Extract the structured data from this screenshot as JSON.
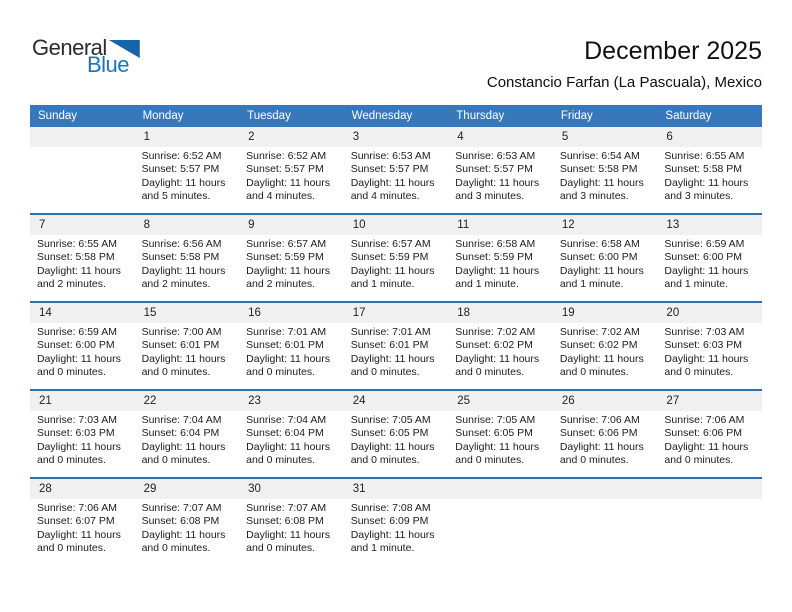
{
  "logo": {
    "text_top": "General",
    "text_bottom": "Blue"
  },
  "title": "December 2025",
  "subtitle": "Constancio Farfan (La Pascuala), Mexico",
  "colors": {
    "header_bg": "#3778BD",
    "header_text": "#FFFFFF",
    "row_separator": "#2E71B0",
    "date_band_bg": "#F0F0F0",
    "logo_blue": "#1B75BC",
    "logo_triangle": "#1565A8",
    "body_text": "#1C1C1C"
  },
  "weekdays": [
    "Sunday",
    "Monday",
    "Tuesday",
    "Wednesday",
    "Thursday",
    "Friday",
    "Saturday"
  ],
  "weeks": [
    [
      {
        "date": "",
        "lines": []
      },
      {
        "date": "1",
        "lines": [
          "Sunrise: 6:52 AM",
          "Sunset: 5:57 PM",
          "Daylight: 11 hours",
          "and 5 minutes."
        ]
      },
      {
        "date": "2",
        "lines": [
          "Sunrise: 6:52 AM",
          "Sunset: 5:57 PM",
          "Daylight: 11 hours",
          "and 4 minutes."
        ]
      },
      {
        "date": "3",
        "lines": [
          "Sunrise: 6:53 AM",
          "Sunset: 5:57 PM",
          "Daylight: 11 hours",
          "and 4 minutes."
        ]
      },
      {
        "date": "4",
        "lines": [
          "Sunrise: 6:53 AM",
          "Sunset: 5:57 PM",
          "Daylight: 11 hours",
          "and 3 minutes."
        ]
      },
      {
        "date": "5",
        "lines": [
          "Sunrise: 6:54 AM",
          "Sunset: 5:58 PM",
          "Daylight: 11 hours",
          "and 3 minutes."
        ]
      },
      {
        "date": "6",
        "lines": [
          "Sunrise: 6:55 AM",
          "Sunset: 5:58 PM",
          "Daylight: 11 hours",
          "and 3 minutes."
        ]
      }
    ],
    [
      {
        "date": "7",
        "lines": [
          "Sunrise: 6:55 AM",
          "Sunset: 5:58 PM",
          "Daylight: 11 hours",
          "and 2 minutes."
        ]
      },
      {
        "date": "8",
        "lines": [
          "Sunrise: 6:56 AM",
          "Sunset: 5:58 PM",
          "Daylight: 11 hours",
          "and 2 minutes."
        ]
      },
      {
        "date": "9",
        "lines": [
          "Sunrise: 6:57 AM",
          "Sunset: 5:59 PM",
          "Daylight: 11 hours",
          "and 2 minutes."
        ]
      },
      {
        "date": "10",
        "lines": [
          "Sunrise: 6:57 AM",
          "Sunset: 5:59 PM",
          "Daylight: 11 hours",
          "and 1 minute."
        ]
      },
      {
        "date": "11",
        "lines": [
          "Sunrise: 6:58 AM",
          "Sunset: 5:59 PM",
          "Daylight: 11 hours",
          "and 1 minute."
        ]
      },
      {
        "date": "12",
        "lines": [
          "Sunrise: 6:58 AM",
          "Sunset: 6:00 PM",
          "Daylight: 11 hours",
          "and 1 minute."
        ]
      },
      {
        "date": "13",
        "lines": [
          "Sunrise: 6:59 AM",
          "Sunset: 6:00 PM",
          "Daylight: 11 hours",
          "and 1 minute."
        ]
      }
    ],
    [
      {
        "date": "14",
        "lines": [
          "Sunrise: 6:59 AM",
          "Sunset: 6:00 PM",
          "Daylight: 11 hours",
          "and 0 minutes."
        ]
      },
      {
        "date": "15",
        "lines": [
          "Sunrise: 7:00 AM",
          "Sunset: 6:01 PM",
          "Daylight: 11 hours",
          "and 0 minutes."
        ]
      },
      {
        "date": "16",
        "lines": [
          "Sunrise: 7:01 AM",
          "Sunset: 6:01 PM",
          "Daylight: 11 hours",
          "and 0 minutes."
        ]
      },
      {
        "date": "17",
        "lines": [
          "Sunrise: 7:01 AM",
          "Sunset: 6:01 PM",
          "Daylight: 11 hours",
          "and 0 minutes."
        ]
      },
      {
        "date": "18",
        "lines": [
          "Sunrise: 7:02 AM",
          "Sunset: 6:02 PM",
          "Daylight: 11 hours",
          "and 0 minutes."
        ]
      },
      {
        "date": "19",
        "lines": [
          "Sunrise: 7:02 AM",
          "Sunset: 6:02 PM",
          "Daylight: 11 hours",
          "and 0 minutes."
        ]
      },
      {
        "date": "20",
        "lines": [
          "Sunrise: 7:03 AM",
          "Sunset: 6:03 PM",
          "Daylight: 11 hours",
          "and 0 minutes."
        ]
      }
    ],
    [
      {
        "date": "21",
        "lines": [
          "Sunrise: 7:03 AM",
          "Sunset: 6:03 PM",
          "Daylight: 11 hours",
          "and 0 minutes."
        ]
      },
      {
        "date": "22",
        "lines": [
          "Sunrise: 7:04 AM",
          "Sunset: 6:04 PM",
          "Daylight: 11 hours",
          "and 0 minutes."
        ]
      },
      {
        "date": "23",
        "lines": [
          "Sunrise: 7:04 AM",
          "Sunset: 6:04 PM",
          "Daylight: 11 hours",
          "and 0 minutes."
        ]
      },
      {
        "date": "24",
        "lines": [
          "Sunrise: 7:05 AM",
          "Sunset: 6:05 PM",
          "Daylight: 11 hours",
          "and 0 minutes."
        ]
      },
      {
        "date": "25",
        "lines": [
          "Sunrise: 7:05 AM",
          "Sunset: 6:05 PM",
          "Daylight: 11 hours",
          "and 0 minutes."
        ]
      },
      {
        "date": "26",
        "lines": [
          "Sunrise: 7:06 AM",
          "Sunset: 6:06 PM",
          "Daylight: 11 hours",
          "and 0 minutes."
        ]
      },
      {
        "date": "27",
        "lines": [
          "Sunrise: 7:06 AM",
          "Sunset: 6:06 PM",
          "Daylight: 11 hours",
          "and 0 minutes."
        ]
      }
    ],
    [
      {
        "date": "28",
        "lines": [
          "Sunrise: 7:06 AM",
          "Sunset: 6:07 PM",
          "Daylight: 11 hours",
          "and 0 minutes."
        ]
      },
      {
        "date": "29",
        "lines": [
          "Sunrise: 7:07 AM",
          "Sunset: 6:08 PM",
          "Daylight: 11 hours",
          "and 0 minutes."
        ]
      },
      {
        "date": "30",
        "lines": [
          "Sunrise: 7:07 AM",
          "Sunset: 6:08 PM",
          "Daylight: 11 hours",
          "and 0 minutes."
        ]
      },
      {
        "date": "31",
        "lines": [
          "Sunrise: 7:08 AM",
          "Sunset: 6:09 PM",
          "Daylight: 11 hours",
          "and 1 minute."
        ]
      },
      {
        "date": "",
        "lines": []
      },
      {
        "date": "",
        "lines": []
      },
      {
        "date": "",
        "lines": []
      }
    ]
  ]
}
